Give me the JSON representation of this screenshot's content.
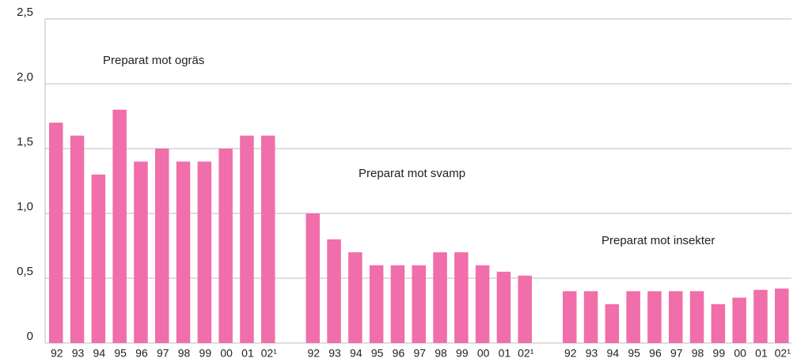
{
  "chart_data": {
    "type": "grouped-bar",
    "color": "#f06ea9",
    "grid": true,
    "ylim": [
      0,
      2.5
    ],
    "yticks": [
      0,
      {
        "value": 0.5,
        "label": "0,5"
      },
      {
        "value": 1.0,
        "label": "1,0"
      },
      {
        "value": 1.5,
        "label": "1,5"
      },
      {
        "value": 2.0,
        "label": "2,0"
      },
      {
        "value": 2.5,
        "label": "2,5"
      }
    ],
    "groups": [
      {
        "name": "Preparat mot ogräs",
        "categories": [
          "92",
          "93",
          "94",
          "95",
          "96",
          "97",
          "98",
          "99",
          "00",
          "01",
          "02¹"
        ],
        "values": [
          1.7,
          1.6,
          1.3,
          1.8,
          1.4,
          1.5,
          1.4,
          1.4,
          1.5,
          1.6,
          1.6
        ]
      },
      {
        "name": "Preparat mot svamp",
        "categories": [
          "92",
          "93",
          "94",
          "95",
          "96",
          "97",
          "98",
          "99",
          "00",
          "01",
          "02¹"
        ],
        "values": [
          1.0,
          0.8,
          0.7,
          0.6,
          0.6,
          0.6,
          0.7,
          0.7,
          0.6,
          0.55,
          0.52
        ]
      },
      {
        "name": "Preparat mot insekter",
        "categories": [
          "92",
          "93",
          "94",
          "95",
          "96",
          "97",
          "98",
          "99",
          "00",
          "01",
          "02¹"
        ],
        "values": [
          0.4,
          0.4,
          0.3,
          0.4,
          0.4,
          0.4,
          0.4,
          0.3,
          0.35,
          0.41,
          0.42
        ]
      }
    ]
  }
}
